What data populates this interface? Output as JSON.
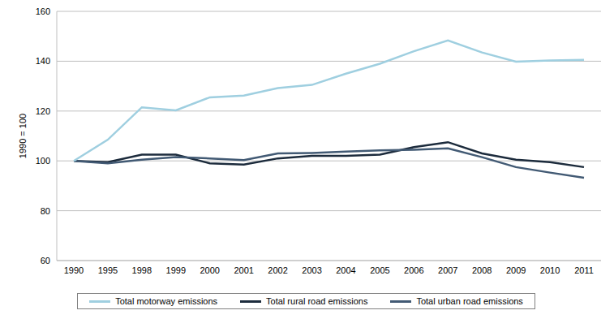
{
  "chart_data": {
    "type": "line",
    "y_label": "1990 = 100",
    "categories": [
      "1990",
      "1995",
      "1998",
      "1999",
      "2000",
      "2001",
      "2002",
      "2003",
      "2004",
      "2005",
      "2006",
      "2007",
      "2008",
      "2009",
      "2010",
      "2011"
    ],
    "series": [
      {
        "name": "Total rural road emissions",
        "color": "#1c2b3c",
        "values": [
          100,
          99.5,
          102.5,
          102.5,
          99,
          98.5,
          101,
          102,
          102,
          102.5,
          105.5,
          107.5,
          103,
          100.5,
          99.5,
          97.5
        ]
      },
      {
        "name": "Total urban road emissions",
        "color": "#425a74",
        "values": [
          100,
          99,
          100.5,
          101.5,
          101,
          100.3,
          103,
          103.2,
          103.7,
          104.2,
          104.5,
          105,
          101.5,
          97.5,
          95.3,
          93.2
        ]
      },
      {
        "name": "Total motorway emissions",
        "color": "#9fcfe0",
        "values": [
          100,
          108.5,
          121.5,
          120.3,
          125.5,
          126.2,
          129.2,
          130.5,
          135,
          139,
          144,
          148.3,
          143.5,
          139.8,
          140.3,
          140.5
        ]
      }
    ],
    "ylim": [
      60,
      160
    ],
    "yticks": [
      60,
      80,
      100,
      120,
      140,
      160
    ],
    "grid": true,
    "legend": "bottom"
  }
}
